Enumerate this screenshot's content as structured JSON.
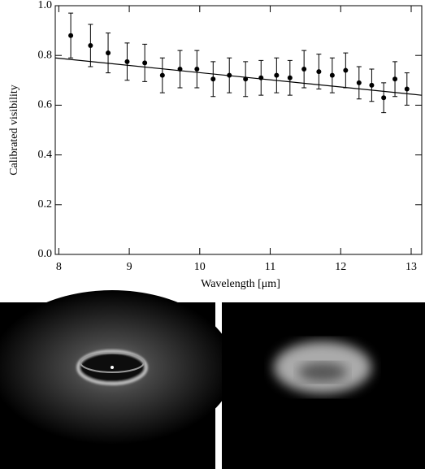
{
  "chart_data": {
    "type": "errorbar",
    "xlabel": "Wavelength [μm]",
    "ylabel": "Calibrated visibility",
    "xlim": [
      7.95,
      13.15
    ],
    "ylim": [
      0,
      1
    ],
    "xticks": [
      8,
      9,
      10,
      11,
      12,
      13
    ],
    "yticks": [
      {
        "value": 0,
        "label": "0.0"
      },
      {
        "value": 0.2,
        "label": "0.2"
      },
      {
        "value": 0.4,
        "label": "0.4"
      },
      {
        "value": 0.6,
        "label": "0.6"
      },
      {
        "value": 0.8,
        "label": "0.8"
      },
      {
        "value": 1,
        "label": "1.0"
      }
    ],
    "series": [
      {
        "color": "#000000",
        "x": [
          8.17,
          8.45,
          8.7,
          8.97,
          9.22,
          9.47,
          9.72,
          9.96,
          10.19,
          10.42,
          10.65,
          10.87,
          11.09,
          11.28,
          11.48,
          11.69,
          11.88,
          12.07,
          12.26,
          12.44,
          12.61,
          12.77,
          12.94
        ],
        "values": [
          0.88,
          0.84,
          0.81,
          0.775,
          0.77,
          0.72,
          0.745,
          0.745,
          0.705,
          0.72,
          0.705,
          0.71,
          0.72,
          0.71,
          0.745,
          0.735,
          0.72,
          0.74,
          0.69,
          0.68,
          0.63,
          0.705,
          0.665
        ],
        "errors": [
          0.09,
          0.085,
          0.08,
          0.075,
          0.075,
          0.07,
          0.075,
          0.075,
          0.07,
          0.07,
          0.07,
          0.07,
          0.07,
          0.07,
          0.075,
          0.07,
          0.07,
          0.07,
          0.065,
          0.065,
          0.06,
          0.07,
          0.065
        ]
      }
    ],
    "model": {
      "color": "#000000",
      "x": [
        7.95,
        13.15
      ],
      "values": [
        0.79,
        0.64
      ]
    }
  }
}
